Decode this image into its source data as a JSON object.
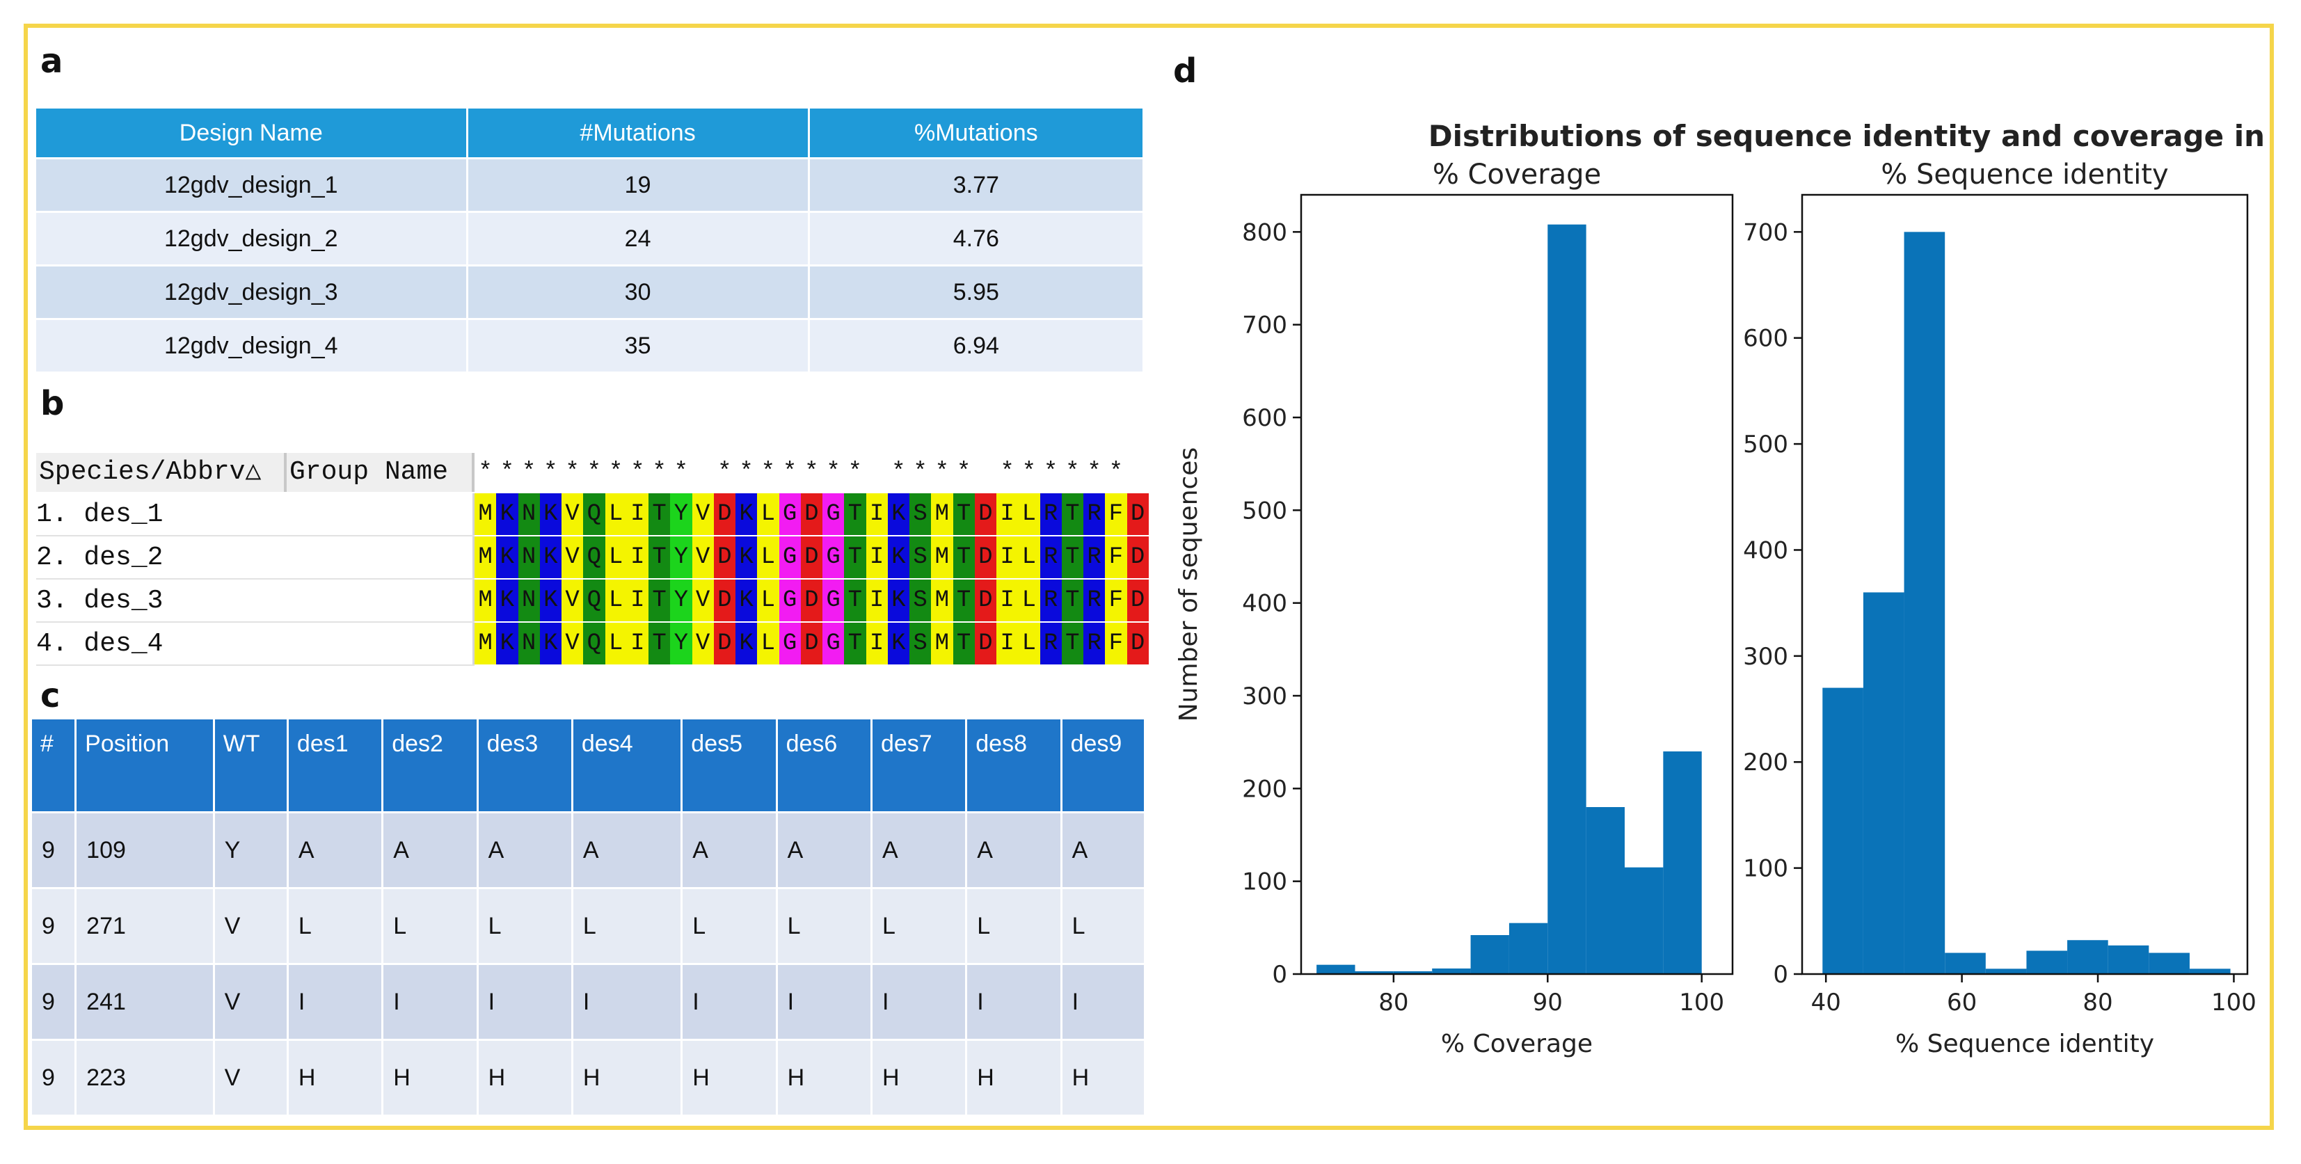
{
  "panels": {
    "a": "a",
    "b": "b",
    "c": "c",
    "d": "d"
  },
  "table_a": {
    "headers": [
      "Design Name",
      "#Mutations",
      "%Mutations"
    ],
    "rows": [
      [
        "12gdv_design_1",
        "19",
        "3.77"
      ],
      [
        "12gdv_design_2",
        "24",
        "4.76"
      ],
      [
        "12gdv_design_3",
        "30",
        "5.95"
      ],
      [
        "12gdv_design_4",
        "35",
        "6.94"
      ]
    ]
  },
  "alignment": {
    "header_species": "Species/Abbrv△",
    "header_group": "Group Name",
    "consensus": "**********_*******_****_******_",
    "sequence": "MKNKVQLITYVDKLGDGTIKSMTDILRTRFD",
    "names": [
      "1. des_1",
      "2. des_2",
      "3. des_3",
      "4. des_4"
    ],
    "colors": {
      "yellow": "#f4f400",
      "green": "#138a13",
      "blue": "#0a0adc",
      "red": "#e41a1a",
      "magenta": "#f21cf2",
      "lime": "#1cd41c",
      "white": "#ffffff"
    }
  },
  "table_c": {
    "headers": [
      "#",
      "Position",
      "WT",
      "des1",
      "des2",
      "des3",
      "des4",
      "des5",
      "des6",
      "des7",
      "des8",
      "des9"
    ],
    "rows": [
      [
        "9",
        "109",
        "Y",
        "A",
        "A",
        "A",
        "A",
        "A",
        "A",
        "A",
        "A",
        "A"
      ],
      [
        "9",
        "271",
        "V",
        "L",
        "L",
        "L",
        "L",
        "L",
        "L",
        "L",
        "L",
        "L"
      ],
      [
        "9",
        "241",
        "V",
        "I",
        "I",
        "I",
        "I",
        "I",
        "I",
        "I",
        "I",
        "I"
      ],
      [
        "9",
        "223",
        "V",
        "H",
        "H",
        "H",
        "H",
        "H",
        "H",
        "H",
        "H",
        "H"
      ]
    ]
  },
  "chart_data": [
    {
      "type": "bar",
      "suptitle": "Distributions of sequence identity and coverage in the MSA",
      "title": "% Coverage",
      "xlabel": "% Coverage",
      "ylabel": "Number of sequences",
      "xlim": [
        74,
        102
      ],
      "ylim": [
        0,
        840
      ],
      "xticks": [
        80,
        90,
        100
      ],
      "yticks": [
        0,
        100,
        200,
        300,
        400,
        500,
        600,
        700,
        800
      ],
      "bin_edges": [
        75,
        77.5,
        80,
        82.5,
        85,
        87.5,
        90,
        92.5,
        95,
        97.5,
        100
      ],
      "values": [
        10,
        3,
        3,
        6,
        42,
        55,
        808,
        180,
        115,
        240
      ],
      "color": "#0a73b8"
    },
    {
      "type": "bar",
      "title": "% Sequence identity",
      "xlabel": "% Sequence identity",
      "ylabel": "",
      "xlim": [
        36.5,
        102
      ],
      "ylim": [
        0,
        735
      ],
      "xticks": [
        40,
        60,
        80,
        100
      ],
      "yticks": [
        0,
        100,
        200,
        300,
        400,
        500,
        600,
        700
      ],
      "bin_edges": [
        39.5,
        45.5,
        51.5,
        57.5,
        63.5,
        69.5,
        75.5,
        81.5,
        87.5,
        93.5,
        99.5
      ],
      "values": [
        270,
        360,
        700,
        20,
        5,
        22,
        32,
        27,
        20,
        5
      ],
      "color": "#0a73b8"
    }
  ]
}
